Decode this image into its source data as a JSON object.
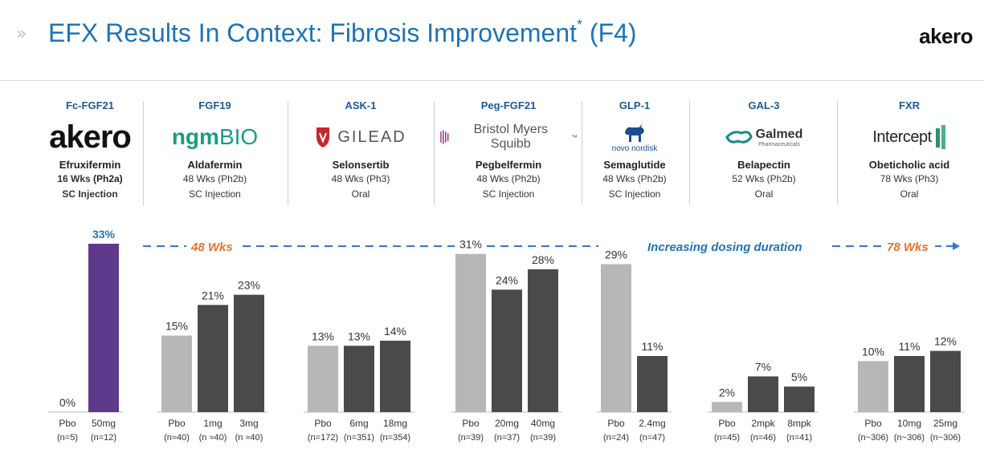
{
  "header": {
    "title": "EFX Results In Context: Fibrosis Improvement",
    "title_mark": "*",
    "title_suffix": " (F4)",
    "logo": "akero"
  },
  "columns": [
    {
      "class": "Fc-FGF21",
      "logo": "akero",
      "drug": "Efruxifermin",
      "duration": "16 Wks",
      "phase": " (Ph2a)",
      "route": "SC Injection"
    },
    {
      "class": "FGF19",
      "logo_a": "ngm",
      "logo_b": "BIO",
      "drug": "Aldafermin",
      "duration": "48 Wks (Ph2b)",
      "route": "SC Injection"
    },
    {
      "class": "ASK-1",
      "logo": "GILEAD",
      "drug": "Selonsertib",
      "duration": "48 Wks (Ph3)",
      "route": "Oral"
    },
    {
      "class": "Peg-FGF21",
      "logo": "Bristol Myers Squibb",
      "logo_mark": "™",
      "drug": "Pegbelfermin",
      "duration": "48 Wks (Ph2b)",
      "route": "SC Injection"
    },
    {
      "class": "GLP-1",
      "logo": "novo nordisk",
      "drug": "Semaglutide",
      "duration": "48 Wks (Ph2b)",
      "route": "SC Injection"
    },
    {
      "class": "GAL-3",
      "logo": "Galmed",
      "logo_sub": "Pharmaceuticals",
      "drug": "Belapectin",
      "duration": "52 Wks (Ph2b)",
      "route": "Oral"
    },
    {
      "class": "FXR",
      "logo": "Intercept",
      "drug": "Obeticholic acid",
      "duration": "78 Wks (Ph3)",
      "route": "Oral"
    }
  ],
  "annotations": {
    "left": "48 Wks",
    "middle": "Increasing dosing duration",
    "right": "78 Wks"
  },
  "chart_data": {
    "type": "bar",
    "title": "",
    "xlabel": "",
    "ylabel": "",
    "unit": "%",
    "ylim": [
      0,
      33
    ],
    "grid": false,
    "groups": [
      {
        "drug": "Efruxifermin",
        "bars": [
          {
            "label": "Pbo",
            "n": "(n=5)",
            "value": 0,
            "kind": "placebo"
          },
          {
            "label": "50mg",
            "n": "(n=12)",
            "value": 33,
            "kind": "efx"
          }
        ]
      },
      {
        "drug": "Aldafermin",
        "bars": [
          {
            "label": "Pbo",
            "n": "(n≈40)",
            "value": 15,
            "kind": "placebo"
          },
          {
            "label": "1mg",
            "n": "(n ≈40)",
            "value": 21,
            "kind": "drug"
          },
          {
            "label": "3mg",
            "n": "(n ≈40)",
            "value": 23,
            "kind": "drug"
          }
        ]
      },
      {
        "drug": "Selonsertib",
        "bars": [
          {
            "label": "Pbo",
            "n": "(n=172)",
            "value": 13,
            "kind": "placebo"
          },
          {
            "label": "6mg",
            "n": "(n=351)",
            "value": 13,
            "kind": "drug"
          },
          {
            "label": "18mg",
            "n": "(n=354)",
            "value": 14,
            "kind": "drug"
          }
        ]
      },
      {
        "drug": "Pegbelfermin",
        "bars": [
          {
            "label": "Pbo",
            "n": "(n=39)",
            "value": 31,
            "kind": "placebo"
          },
          {
            "label": "20mg",
            "n": "(n=37)",
            "value": 24,
            "kind": "drug"
          },
          {
            "label": "40mg",
            "n": "(n=39)",
            "value": 28,
            "kind": "drug"
          }
        ]
      },
      {
        "drug": "Semaglutide",
        "bars": [
          {
            "label": "Pbo",
            "n": "(n=24)",
            "value": 29,
            "kind": "placebo"
          },
          {
            "label": "2.4mg",
            "n": "(n=47)",
            "value": 11,
            "kind": "drug"
          }
        ]
      },
      {
        "drug": "Belapectin",
        "bars": [
          {
            "label": "Pbo",
            "n": "(n=45)",
            "value": 2,
            "kind": "placebo"
          },
          {
            "label": "2mpk",
            "n": "(n=46)",
            "value": 7,
            "kind": "drug"
          },
          {
            "label": "8mpk",
            "n": "(n=41)",
            "value": 5,
            "kind": "drug"
          }
        ]
      },
      {
        "drug": "Obeticholic acid",
        "bars": [
          {
            "label": "Pbo",
            "n": "(n~306)",
            "value": 10,
            "kind": "placebo"
          },
          {
            "label": "10mg",
            "n": "(n~306)",
            "value": 11,
            "kind": "drug"
          },
          {
            "label": "25mg",
            "n": "(n~306)",
            "value": 12,
            "kind": "drug"
          }
        ]
      }
    ],
    "colors": {
      "placebo": "#b7b7b7",
      "drug": "#4a4a4a",
      "efx": "#5d3a8c",
      "efx_label": "#1f73b7",
      "annotation_orange": "#e8742a",
      "annotation_blue": "#1f73b7",
      "arrow": "#2a7bd0"
    }
  }
}
